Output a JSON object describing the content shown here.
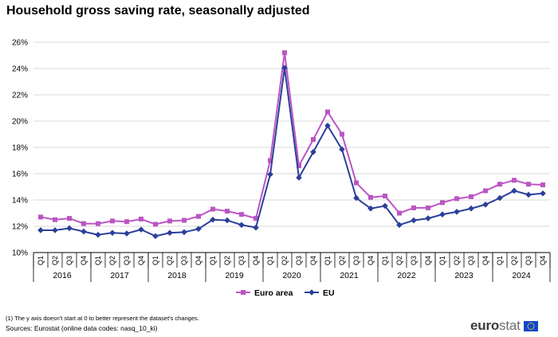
{
  "title": "Household gross saving rate, seasonally adjusted",
  "footnote": "(1) The y axis doesn't start at 0 to better represent the dataset's changes.",
  "sources": "Sources: Eurostat (online data codes: nasq_10_ki)",
  "logo": {
    "euro": "euro",
    "stat": "stat",
    "flag_icon": "eu-flag-icon"
  },
  "colors": {
    "euro_area": "#bb55c4",
    "eu": "#2b3f9a",
    "grid": "#d9d9d9",
    "flag": "#0e47cb",
    "stars": "#ffd617"
  },
  "chart_data": {
    "type": "line",
    "title": "Household gross saving rate, seasonally adjusted",
    "ylim": [
      10,
      26
    ],
    "yticks": [
      10,
      12,
      14,
      16,
      18,
      20,
      22,
      24,
      26
    ],
    "ytick_labels": [
      "10%",
      "12%",
      "14%",
      "16%",
      "18%",
      "20%",
      "22%",
      "24%",
      "26%"
    ],
    "quarters": [
      "Q1",
      "Q2",
      "Q3",
      "Q4"
    ],
    "years": [
      "2016",
      "2017",
      "2018",
      "2019",
      "2020",
      "2021",
      "2022",
      "2023",
      "2024"
    ],
    "grid": true,
    "legend": "bottom-center",
    "series": [
      {
        "name": "Euro area",
        "color": "#bb55c4",
        "marker": "square",
        "values": [
          12.7,
          12.5,
          12.6,
          12.2,
          12.2,
          12.4,
          12.35,
          12.55,
          12.15,
          12.4,
          12.45,
          12.75,
          13.3,
          13.15,
          12.9,
          12.6,
          17.0,
          25.2,
          16.6,
          18.6,
          20.7,
          19.0,
          15.3,
          14.2,
          14.3,
          13.0,
          13.4,
          13.4,
          13.8,
          14.1,
          14.25,
          14.7,
          15.2,
          15.5,
          15.2,
          15.15
        ]
      },
      {
        "name": "EU",
        "color": "#2b3f9a",
        "marker": "diamond",
        "values": [
          11.7,
          11.7,
          11.85,
          11.6,
          11.35,
          11.5,
          11.45,
          11.75,
          11.25,
          11.5,
          11.55,
          11.8,
          12.5,
          12.45,
          12.1,
          11.9,
          15.95,
          24.05,
          15.7,
          17.65,
          19.65,
          17.85,
          14.15,
          13.35,
          13.55,
          12.1,
          12.45,
          12.6,
          12.9,
          13.1,
          13.35,
          13.65,
          14.15,
          14.7,
          14.4,
          14.5
        ]
      }
    ]
  }
}
